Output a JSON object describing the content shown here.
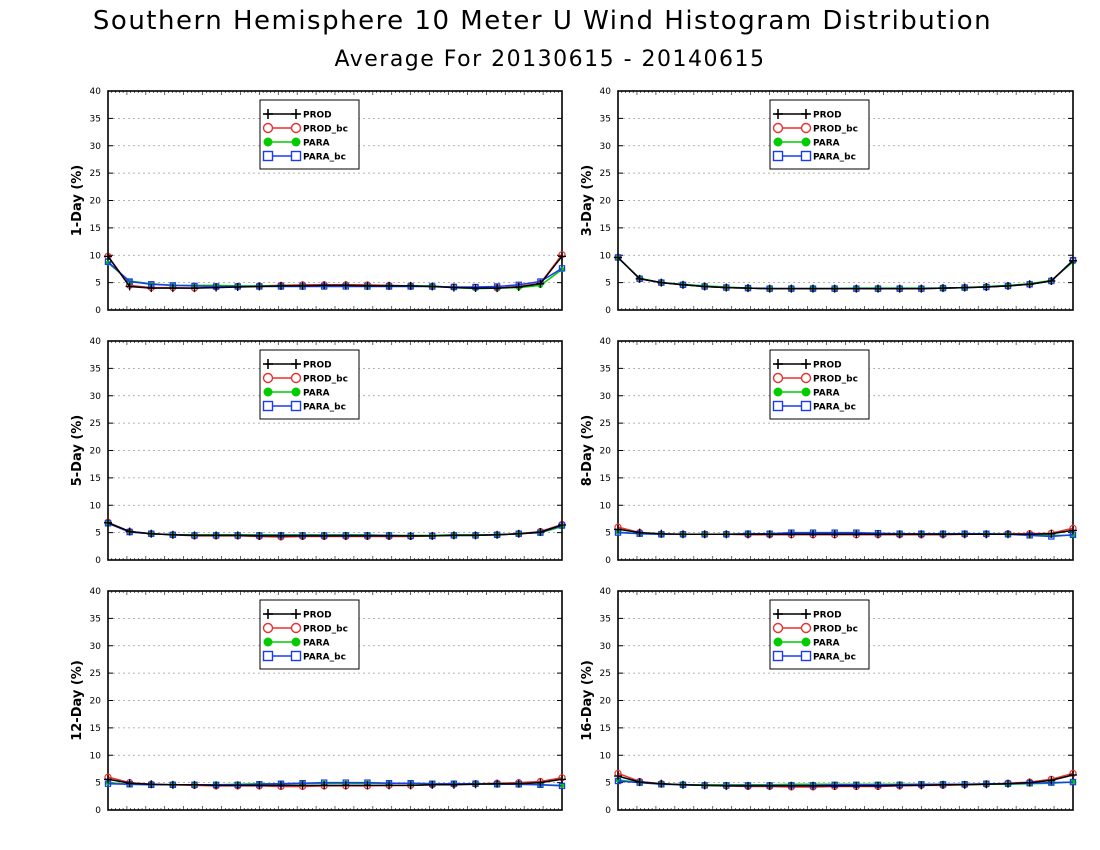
{
  "main_title": "Southern Hemisphere 10 Meter U Wind Histogram Distribution",
  "subtitle": "Average For 20130615 - 20140615",
  "colors": {
    "PROD": "#000000",
    "PROD_bc": "#e8302f",
    "PARA": "#00cc00",
    "PARA_bc": "#1a3cf0"
  },
  "legend_entries": [
    "PROD",
    "PROD_bc",
    "PARA",
    "PARA_bc"
  ],
  "chart_data": [
    {
      "type": "line",
      "ylabel": "1-Day (%)",
      "ylim": [
        0,
        40
      ],
      "yticks": [
        0,
        5,
        10,
        15,
        20,
        25,
        30,
        35,
        40
      ],
      "grid": true,
      "legend": "top-center",
      "x": [
        1,
        2,
        3,
        4,
        5,
        6,
        7,
        8,
        9,
        10,
        11,
        12,
        13,
        14,
        15,
        16,
        17,
        18,
        19,
        20,
        21,
        22
      ],
      "series": [
        {
          "name": "PROD",
          "values": [
            9.8,
            4.3,
            4.0,
            4.0,
            4.0,
            4.1,
            4.2,
            4.3,
            4.4,
            4.4,
            4.5,
            4.5,
            4.4,
            4.4,
            4.4,
            4.3,
            4.1,
            4.0,
            4.0,
            4.2,
            4.8,
            9.8
          ]
        },
        {
          "name": "PROD_bc",
          "values": [
            9.8,
            4.5,
            4.1,
            4.1,
            4.0,
            4.2,
            4.3,
            4.4,
            4.5,
            4.6,
            4.6,
            4.6,
            4.6,
            4.5,
            4.4,
            4.3,
            4.2,
            4.1,
            4.0,
            4.3,
            4.9,
            10.1
          ]
        },
        {
          "name": "PARA",
          "values": [
            8.6,
            5.3,
            4.8,
            4.5,
            4.5,
            4.5,
            4.4,
            4.4,
            4.4,
            4.4,
            4.4,
            4.4,
            4.4,
            4.4,
            4.4,
            4.4,
            4.1,
            3.9,
            4.0,
            4.1,
            4.5,
            7.4
          ]
        },
        {
          "name": "PARA_bc",
          "values": [
            8.8,
            5.2,
            4.7,
            4.5,
            4.4,
            4.3,
            4.3,
            4.3,
            4.3,
            4.3,
            4.3,
            4.3,
            4.3,
            4.3,
            4.3,
            4.3,
            4.2,
            4.2,
            4.3,
            4.6,
            5.2,
            7.6
          ]
        }
      ]
    },
    {
      "type": "line",
      "ylabel": "3-Day (%)",
      "ylim": [
        0,
        40
      ],
      "yticks": [
        0,
        5,
        10,
        15,
        20,
        25,
        30,
        35,
        40
      ],
      "grid": true,
      "legend": "top-center",
      "x": [
        1,
        2,
        3,
        4,
        5,
        6,
        7,
        8,
        9,
        10,
        11,
        12,
        13,
        14,
        15,
        16,
        17,
        18,
        19,
        20,
        21,
        22
      ],
      "series": [
        {
          "name": "PROD",
          "values": [
            9.6,
            5.7,
            5.0,
            4.6,
            4.3,
            4.1,
            4.0,
            3.9,
            3.9,
            3.9,
            3.9,
            3.9,
            3.9,
            3.9,
            3.9,
            4.0,
            4.1,
            4.2,
            4.4,
            4.7,
            5.3,
            9.0
          ]
        },
        {
          "name": "PROD_bc",
          "values": [
            9.6,
            5.7,
            5.0,
            4.6,
            4.3,
            4.1,
            4.0,
            3.9,
            3.9,
            3.9,
            3.9,
            3.9,
            3.9,
            3.9,
            3.9,
            4.0,
            4.1,
            4.2,
            4.4,
            4.7,
            5.3,
            9.0
          ]
        },
        {
          "name": "PARA",
          "values": [
            9.5,
            5.8,
            5.0,
            4.7,
            4.4,
            4.2,
            4.0,
            3.9,
            3.9,
            3.9,
            3.9,
            4.0,
            4.0,
            4.0,
            4.0,
            4.0,
            4.1,
            4.3,
            4.5,
            4.8,
            5.4,
            8.8
          ]
        },
        {
          "name": "PARA_bc",
          "values": [
            9.6,
            5.7,
            5.0,
            4.6,
            4.3,
            4.1,
            4.0,
            3.9,
            3.9,
            3.9,
            3.9,
            3.9,
            3.9,
            3.9,
            3.9,
            4.0,
            4.1,
            4.2,
            4.4,
            4.7,
            5.3,
            9.1
          ]
        }
      ]
    },
    {
      "type": "line",
      "ylabel": "5-Day (%)",
      "ylim": [
        0,
        40
      ],
      "yticks": [
        0,
        5,
        10,
        15,
        20,
        25,
        30,
        35,
        40
      ],
      "grid": true,
      "legend": "top-center",
      "x": [
        1,
        2,
        3,
        4,
        5,
        6,
        7,
        8,
        9,
        10,
        11,
        12,
        13,
        14,
        15,
        16,
        17,
        18,
        19,
        20,
        21,
        22
      ],
      "series": [
        {
          "name": "PROD",
          "values": [
            6.8,
            5.2,
            4.8,
            4.6,
            4.5,
            4.5,
            4.5,
            4.4,
            4.4,
            4.4,
            4.4,
            4.4,
            4.4,
            4.4,
            4.4,
            4.4,
            4.5,
            4.5,
            4.6,
            4.8,
            5.1,
            6.4
          ]
        },
        {
          "name": "PROD_bc",
          "values": [
            6.9,
            5.2,
            4.8,
            4.6,
            4.4,
            4.4,
            4.4,
            4.3,
            4.2,
            4.3,
            4.3,
            4.3,
            4.3,
            4.3,
            4.3,
            4.4,
            4.5,
            4.5,
            4.6,
            4.8,
            5.2,
            6.5
          ]
        },
        {
          "name": "PARA",
          "values": [
            6.7,
            5.2,
            4.8,
            4.6,
            4.6,
            4.6,
            4.6,
            4.6,
            4.6,
            4.6,
            4.6,
            4.6,
            4.6,
            4.5,
            4.5,
            4.5,
            4.6,
            4.6,
            4.6,
            4.8,
            5.0,
            6.1
          ]
        },
        {
          "name": "PARA_bc",
          "values": [
            6.7,
            5.1,
            4.8,
            4.6,
            4.5,
            4.5,
            4.5,
            4.5,
            4.5,
            4.5,
            4.5,
            4.5,
            4.5,
            4.5,
            4.4,
            4.4,
            4.5,
            4.5,
            4.6,
            4.8,
            5.0,
            6.3
          ]
        }
      ]
    },
    {
      "type": "line",
      "ylabel": "8-Day (%)",
      "ylim": [
        0,
        40
      ],
      "yticks": [
        0,
        5,
        10,
        15,
        20,
        25,
        30,
        35,
        40
      ],
      "grid": true,
      "legend": "top-center",
      "x": [
        1,
        2,
        3,
        4,
        5,
        6,
        7,
        8,
        9,
        10,
        11,
        12,
        13,
        14,
        15,
        16,
        17,
        18,
        19,
        20,
        21,
        22
      ],
      "series": [
        {
          "name": "PROD",
          "values": [
            5.6,
            5.0,
            4.8,
            4.7,
            4.7,
            4.7,
            4.7,
            4.7,
            4.7,
            4.7,
            4.7,
            4.7,
            4.7,
            4.7,
            4.7,
            4.7,
            4.7,
            4.7,
            4.7,
            4.7,
            4.8,
            5.4
          ]
        },
        {
          "name": "PROD_bc",
          "values": [
            6.0,
            5.0,
            4.7,
            4.7,
            4.7,
            4.7,
            4.6,
            4.6,
            4.6,
            4.6,
            4.6,
            4.6,
            4.6,
            4.6,
            4.6,
            4.6,
            4.7,
            4.7,
            4.8,
            4.8,
            4.9,
            5.8
          ]
        },
        {
          "name": "PARA",
          "values": [
            5.1,
            4.8,
            4.7,
            4.7,
            4.7,
            4.7,
            4.8,
            4.8,
            4.9,
            4.9,
            4.9,
            4.9,
            4.8,
            4.8,
            4.8,
            4.8,
            4.8,
            4.8,
            4.7,
            4.6,
            4.5,
            4.5
          ]
        },
        {
          "name": "PARA_bc",
          "values": [
            5.0,
            4.8,
            4.7,
            4.7,
            4.7,
            4.7,
            4.8,
            4.8,
            5.0,
            5.0,
            5.0,
            5.0,
            4.9,
            4.8,
            4.8,
            4.8,
            4.8,
            4.8,
            4.7,
            4.5,
            4.3,
            4.6
          ]
        }
      ]
    },
    {
      "type": "line",
      "ylabel": "12-Day (%)",
      "ylim": [
        0,
        40
      ],
      "yticks": [
        0,
        5,
        10,
        15,
        20,
        25,
        30,
        35,
        40
      ],
      "grid": true,
      "legend": "top-center",
      "x": [
        1,
        2,
        3,
        4,
        5,
        6,
        7,
        8,
        9,
        10,
        11,
        12,
        13,
        14,
        15,
        16,
        17,
        18,
        19,
        20,
        21,
        22
      ],
      "series": [
        {
          "name": "PROD",
          "values": [
            5.6,
            4.9,
            4.7,
            4.6,
            4.6,
            4.5,
            4.5,
            4.5,
            4.5,
            4.5,
            4.5,
            4.5,
            4.5,
            4.5,
            4.5,
            4.6,
            4.6,
            4.7,
            4.8,
            4.8,
            5.0,
            5.6
          ]
        },
        {
          "name": "PROD_bc",
          "values": [
            6.0,
            5.0,
            4.7,
            4.6,
            4.5,
            4.4,
            4.4,
            4.4,
            4.3,
            4.3,
            4.4,
            4.4,
            4.4,
            4.5,
            4.5,
            4.6,
            4.7,
            4.8,
            4.9,
            5.0,
            5.2,
            5.9
          ]
        },
        {
          "name": "PARA",
          "values": [
            5.0,
            4.7,
            4.6,
            4.6,
            4.6,
            4.6,
            4.7,
            4.8,
            4.8,
            4.9,
            4.9,
            4.9,
            4.9,
            4.9,
            4.9,
            4.8,
            4.8,
            4.8,
            4.7,
            4.7,
            4.6,
            4.5
          ]
        },
        {
          "name": "PARA_bc",
          "values": [
            4.8,
            4.7,
            4.6,
            4.6,
            4.6,
            4.6,
            4.6,
            4.7,
            4.8,
            4.9,
            5.0,
            5.0,
            5.0,
            4.9,
            4.9,
            4.8,
            4.8,
            4.8,
            4.7,
            4.7,
            4.6,
            4.4
          ]
        }
      ]
    },
    {
      "type": "line",
      "ylabel": "16-Day (%)",
      "ylim": [
        0,
        40
      ],
      "yticks": [
        0,
        5,
        10,
        15,
        20,
        25,
        30,
        35,
        40
      ],
      "grid": true,
      "legend": "top-center",
      "x": [
        1,
        2,
        3,
        4,
        5,
        6,
        7,
        8,
        9,
        10,
        11,
        12,
        13,
        14,
        15,
        16,
        17,
        18,
        19,
        20,
        21,
        22
      ],
      "series": [
        {
          "name": "PROD",
          "values": [
            6.2,
            5.1,
            4.8,
            4.6,
            4.5,
            4.4,
            4.4,
            4.4,
            4.4,
            4.4,
            4.4,
            4.4,
            4.4,
            4.5,
            4.5,
            4.6,
            4.6,
            4.7,
            4.8,
            5.0,
            5.4,
            6.4
          ]
        },
        {
          "name": "PROD_bc",
          "values": [
            6.7,
            5.2,
            4.8,
            4.6,
            4.5,
            4.4,
            4.3,
            4.3,
            4.2,
            4.2,
            4.3,
            4.3,
            4.3,
            4.4,
            4.5,
            4.5,
            4.6,
            4.7,
            4.9,
            5.1,
            5.6,
            6.7
          ]
        },
        {
          "name": "PARA",
          "values": [
            5.5,
            5.0,
            4.8,
            4.6,
            4.6,
            4.6,
            4.6,
            4.6,
            4.7,
            4.7,
            4.7,
            4.7,
            4.7,
            4.7,
            4.7,
            4.7,
            4.7,
            4.7,
            4.7,
            4.8,
            4.9,
            5.1
          ]
        },
        {
          "name": "PARA_bc",
          "values": [
            5.3,
            5.0,
            4.7,
            4.6,
            4.5,
            4.5,
            4.5,
            4.5,
            4.5,
            4.5,
            4.6,
            4.6,
            4.6,
            4.6,
            4.7,
            4.7,
            4.7,
            4.8,
            4.8,
            4.9,
            5.0,
            5.1
          ]
        }
      ]
    }
  ]
}
